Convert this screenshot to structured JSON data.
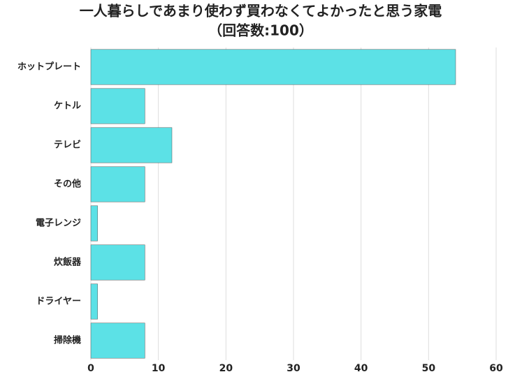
{
  "chart_data": {
    "type": "barh",
    "title": "一人暮らしであまり使わず買わなくてよかったと思う家電",
    "subtitle": "（回答数:100）",
    "categories": [
      "ホットプレート",
      "ケトル",
      "テレビ",
      "その他",
      "電子レンジ",
      "炊飯器",
      "ドライヤー",
      "掃除機"
    ],
    "values": [
      54,
      8,
      12,
      8,
      1,
      8,
      1,
      8
    ],
    "color": "#5ce1e6",
    "xlim": [
      0,
      60
    ],
    "xticks": [
      0,
      10,
      20,
      30,
      40,
      50,
      60
    ],
    "grid": true
  }
}
